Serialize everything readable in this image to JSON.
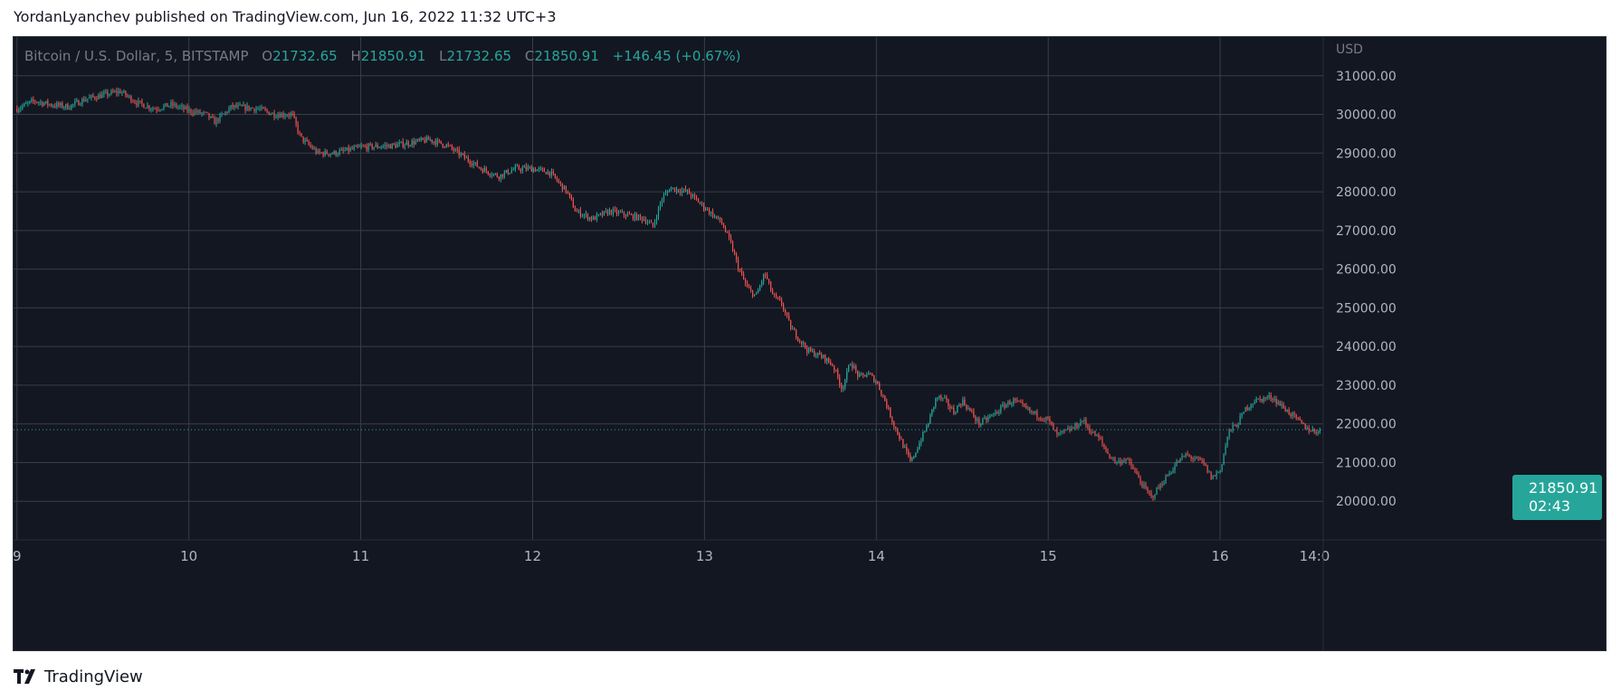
{
  "header": {
    "text": "YordanLyanchev published on TradingView.com, Jun 16, 2022 11:32 UTC+3"
  },
  "legend": {
    "symbol": "Bitcoin / U.S. Dollar, 5, BITSTAMP",
    "open_label": "O",
    "open": "21732.65",
    "high_label": "H",
    "high": "21850.91",
    "low_label": "L",
    "low": "21732.65",
    "close_label": "C",
    "close": "21850.91",
    "change": "+146.45 (+0.67%)"
  },
  "last_price": {
    "value": "21850.91",
    "countdown": "02:43"
  },
  "footer": {
    "brand": "TradingView"
  },
  "colors": {
    "background": "#131722",
    "up": "#26a69a",
    "down": "#ef5350",
    "grid": "#3a3e4a",
    "axis_text": "#b2b5be"
  },
  "chart_data": {
    "type": "candlestick",
    "currency_label": "USD",
    "y_ticks": [
      31000,
      30000,
      29000,
      28000,
      27000,
      26000,
      25000,
      24000,
      23000,
      22000,
      21000,
      20000
    ],
    "y_tick_labels": [
      "31000.00",
      "30000.00",
      "29000.00",
      "28000.00",
      "27000.00",
      "26000.00",
      "25000.00",
      "24000.00",
      "23000.00",
      "22000.00",
      "21000.00",
      "20000.00"
    ],
    "ylim": [
      19000,
      32000
    ],
    "x_ticks": [
      "9",
      "10",
      "11",
      "12",
      "13",
      "14",
      "15",
      "16",
      "14:0"
    ],
    "x_tick_values": [
      0,
      1,
      2,
      3,
      4,
      5,
      6,
      7,
      7.55
    ],
    "xlim": [
      -0.02,
      7.6
    ],
    "last_price": 21850.91,
    "grid": true,
    "price_path": [
      [
        0.0,
        30150
      ],
      [
        0.1,
        30350
      ],
      [
        0.2,
        30250
      ],
      [
        0.3,
        30200
      ],
      [
        0.4,
        30400
      ],
      [
        0.55,
        30550
      ],
      [
        0.6,
        30600
      ],
      [
        0.7,
        30300
      ],
      [
        0.8,
        30150
      ],
      [
        0.9,
        30250
      ],
      [
        1.0,
        30100
      ],
      [
        1.1,
        30000
      ],
      [
        1.15,
        29800
      ],
      [
        1.25,
        30200
      ],
      [
        1.4,
        30150
      ],
      [
        1.5,
        30000
      ],
      [
        1.6,
        30000
      ],
      [
        1.65,
        29400
      ],
      [
        1.75,
        29000
      ],
      [
        1.85,
        29000
      ],
      [
        2.0,
        29150
      ],
      [
        2.2,
        29200
      ],
      [
        2.4,
        29350
      ],
      [
        2.5,
        29200
      ],
      [
        2.6,
        28900
      ],
      [
        2.7,
        28600
      ],
      [
        2.8,
        28400
      ],
      [
        2.9,
        28600
      ],
      [
        3.0,
        28600
      ],
      [
        3.1,
        28500
      ],
      [
        3.2,
        28000
      ],
      [
        3.25,
        27500
      ],
      [
        3.35,
        27300
      ],
      [
        3.45,
        27500
      ],
      [
        3.55,
        27400
      ],
      [
        3.65,
        27300
      ],
      [
        3.7,
        27100
      ],
      [
        3.75,
        27800
      ],
      [
        3.8,
        28100
      ],
      [
        3.9,
        28000
      ],
      [
        4.0,
        27600
      ],
      [
        4.1,
        27200
      ],
      [
        4.15,
        26700
      ],
      [
        4.2,
        26000
      ],
      [
        4.25,
        25500
      ],
      [
        4.3,
        25300
      ],
      [
        4.35,
        25900
      ],
      [
        4.4,
        25300
      ],
      [
        4.45,
        25100
      ],
      [
        4.5,
        24500
      ],
      [
        4.6,
        23900
      ],
      [
        4.7,
        23700
      ],
      [
        4.75,
        23500
      ],
      [
        4.8,
        22900
      ],
      [
        4.85,
        23600
      ],
      [
        4.9,
        23200
      ],
      [
        4.95,
        23300
      ],
      [
        5.0,
        23100
      ],
      [
        5.05,
        22600
      ],
      [
        5.1,
        22000
      ],
      [
        5.15,
        21500
      ],
      [
        5.2,
        21000
      ],
      [
        5.25,
        21500
      ],
      [
        5.3,
        22000
      ],
      [
        5.35,
        22700
      ],
      [
        5.4,
        22600
      ],
      [
        5.45,
        22300
      ],
      [
        5.5,
        22600
      ],
      [
        5.55,
        22300
      ],
      [
        5.6,
        22000
      ],
      [
        5.7,
        22300
      ],
      [
        5.75,
        22500
      ],
      [
        5.8,
        22600
      ],
      [
        5.9,
        22300
      ],
      [
        6.0,
        22100
      ],
      [
        6.05,
        21700
      ],
      [
        6.15,
        21900
      ],
      [
        6.2,
        22100
      ],
      [
        6.25,
        21800
      ],
      [
        6.3,
        21600
      ],
      [
        6.35,
        21200
      ],
      [
        6.4,
        21000
      ],
      [
        6.45,
        21100
      ],
      [
        6.5,
        20800
      ],
      [
        6.55,
        20400
      ],
      [
        6.6,
        20100
      ],
      [
        6.65,
        20400
      ],
      [
        6.7,
        20700
      ],
      [
        6.75,
        21000
      ],
      [
        6.8,
        21200
      ],
      [
        6.85,
        21100
      ],
      [
        6.9,
        21000
      ],
      [
        6.95,
        20600
      ],
      [
        7.0,
        20800
      ],
      [
        7.05,
        21800
      ],
      [
        7.1,
        22000
      ],
      [
        7.15,
        22400
      ],
      [
        7.2,
        22600
      ],
      [
        7.3,
        22700
      ],
      [
        7.35,
        22500
      ],
      [
        7.4,
        22300
      ],
      [
        7.45,
        22100
      ],
      [
        7.5,
        21900
      ],
      [
        7.55,
        21800
      ],
      [
        7.58,
        21850
      ]
    ]
  }
}
